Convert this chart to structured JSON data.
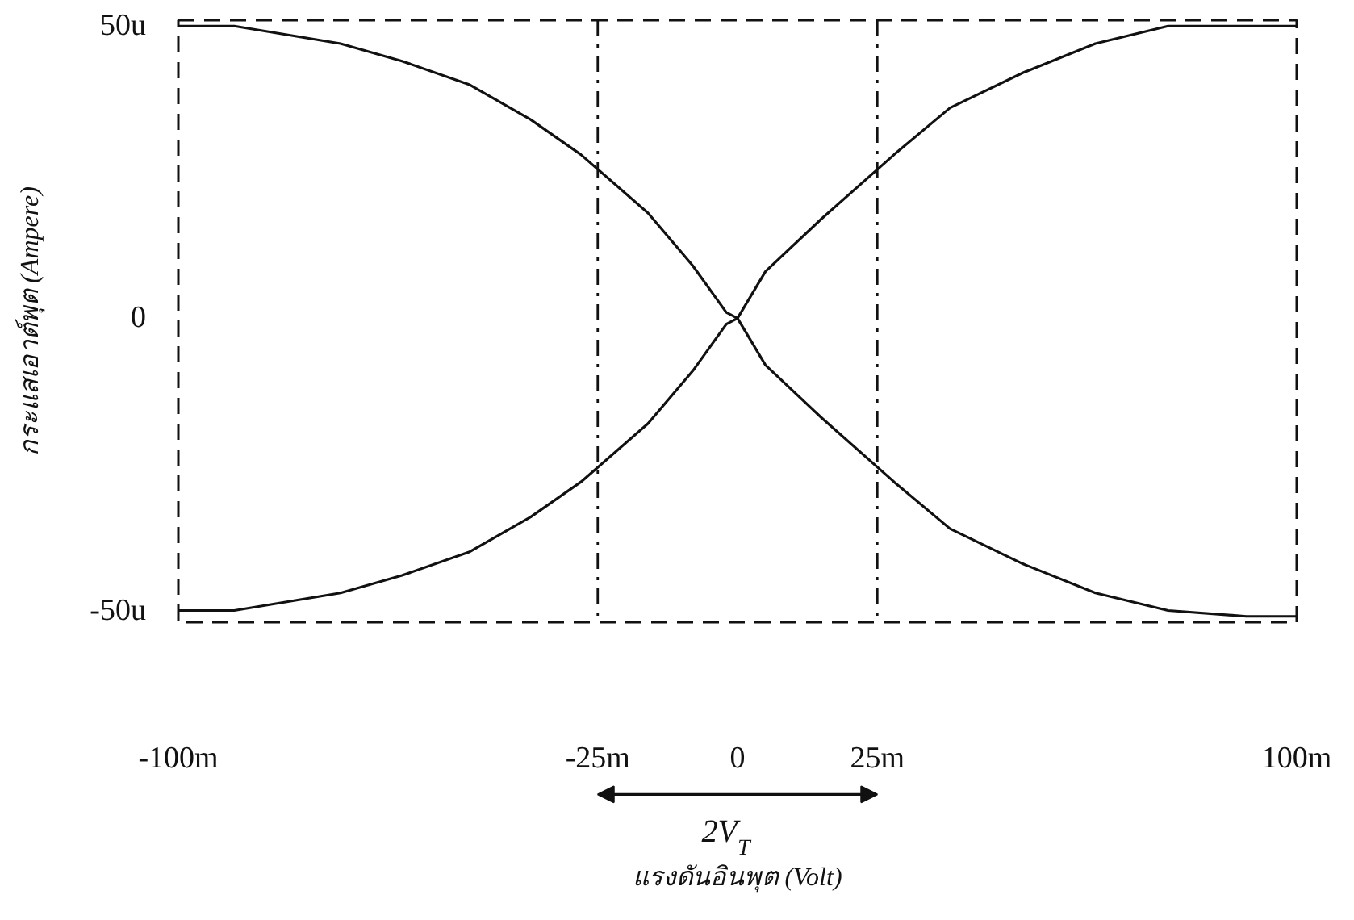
{
  "chart_data": {
    "type": "line",
    "xlabel": "แรงดันอินพุต (Volt)",
    "ylabel": "กระแสเอาต์พุต (Ampere)",
    "x": [
      -100,
      -90,
      -71,
      -60,
      -48,
      -37,
      -28,
      -16,
      -8,
      -2,
      0,
      5,
      15,
      28,
      38,
      51,
      64,
      77,
      91,
      100
    ],
    "series": [
      {
        "color": "#111111",
        "values": [
          50,
          50,
          47,
          44,
          40,
          34,
          28,
          18,
          9,
          1,
          0,
          -8,
          -17,
          -28,
          -36,
          -42,
          -47,
          -50,
          -51,
          -51
        ]
      },
      {
        "color": "#111111",
        "values": [
          -50,
          -50,
          -47,
          -44,
          -40,
          -34,
          -28,
          -18,
          -9,
          -1,
          0,
          8,
          17,
          28,
          36,
          42,
          47,
          50,
          50,
          50
        ]
      }
    ],
    "xlim": [
      -100,
      100
    ],
    "ylim": [
      -52,
      51
    ],
    "xticks": [
      {
        "value": -100,
        "label": "-100m"
      },
      {
        "value": -25,
        "label": "-25m"
      },
      0,
      {
        "value": 25,
        "label": "25m"
      },
      {
        "value": 100,
        "label": "100m"
      }
    ],
    "yticks": [
      {
        "value": -50,
        "label": "-50u"
      },
      0,
      {
        "value": 50,
        "label": "50u"
      }
    ],
    "ref_lines": [
      {
        "axis": "x",
        "value": -25,
        "line_style": "dashdot",
        "color": "#111111"
      },
      {
        "axis": "x",
        "value": 25,
        "line_style": "dashdot",
        "color": "#111111"
      }
    ],
    "annotations": [
      "2V$_{T}$"
    ],
    "grid": false,
    "line_style": "solid",
    "marker": "none"
  }
}
